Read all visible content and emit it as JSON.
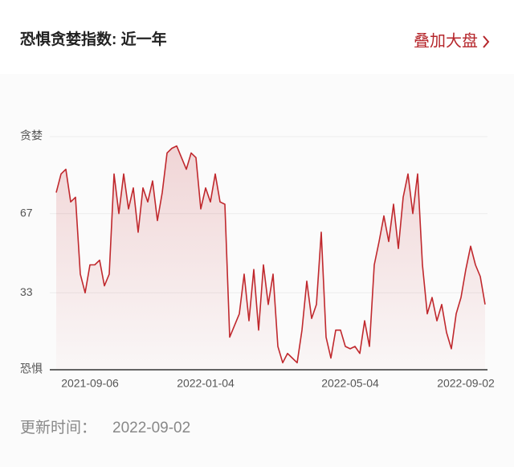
{
  "chart_data": {
    "type": "line",
    "title": "恐惧贪婪指数: 近一年",
    "action": "叠加大盘",
    "categories": [
      null,
      null,
      null,
      null,
      null,
      null,
      null,
      "2021-09-06",
      null,
      null,
      null,
      null,
      null,
      null,
      null,
      null,
      null,
      null,
      null,
      null,
      null,
      null,
      null,
      null,
      null,
      null,
      null,
      null,
      null,
      null,
      null,
      "2022-01-04",
      null,
      null,
      null,
      null,
      null,
      null,
      null,
      null,
      null,
      null,
      null,
      null,
      null,
      null,
      null,
      null,
      null,
      null,
      null,
      null,
      null,
      null,
      null,
      null,
      null,
      null,
      null,
      null,
      null,
      "2022-05-04",
      null,
      null,
      null,
      null,
      null,
      null,
      null,
      null,
      null,
      null,
      null,
      null,
      null,
      null,
      null,
      null,
      null,
      null,
      null,
      null,
      null,
      null,
      null,
      "2022-09-02",
      null,
      null,
      null,
      null
    ],
    "series": [
      {
        "name": "恐惧贪婪指数",
        "color": "#c0282d",
        "values": [
          76,
          84,
          86,
          72,
          74,
          41,
          33,
          45,
          45,
          47,
          36,
          41,
          84,
          67,
          84,
          69,
          78,
          59,
          78,
          72,
          81,
          64,
          76,
          93,
          95,
          96,
          91,
          86,
          93,
          91,
          69,
          78,
          72,
          84,
          72,
          71,
          14,
          19,
          24,
          41,
          21,
          43,
          17,
          45,
          28,
          41,
          10,
          3,
          7,
          5,
          3,
          17,
          38,
          22,
          28,
          59,
          14,
          5,
          17,
          17,
          10,
          9,
          10,
          7,
          21,
          10,
          45,
          55,
          66,
          55,
          71,
          52,
          74,
          84,
          67,
          84,
          45,
          24,
          31,
          21,
          28,
          16,
          9,
          24,
          31,
          43,
          53,
          45,
          40,
          28
        ]
      }
    ],
    "ylim": [
      0,
      100
    ],
    "yticks": [
      {
        "value": 0,
        "label": "恐惧"
      },
      33,
      67,
      {
        "value": 100,
        "label": "贪婪"
      }
    ],
    "grid": true
  },
  "footer": {
    "label": "更新时间：",
    "date": "2022-09-02"
  }
}
